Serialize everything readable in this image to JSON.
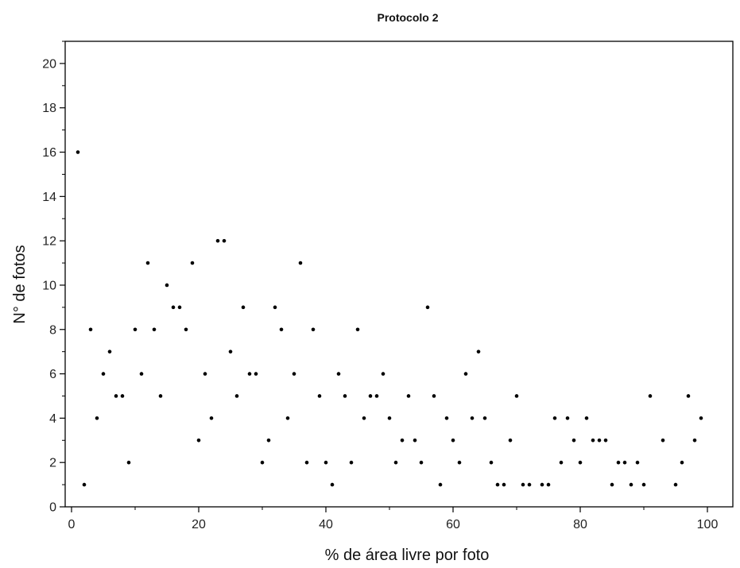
{
  "chart_data": {
    "type": "scatter",
    "title": "Protocolo 2",
    "xlabel": "% de área livre por foto",
    "ylabel": "N° de fotos",
    "xlim": [
      -1,
      104
    ],
    "ylim": [
      0,
      21
    ],
    "xticks": [
      0,
      20,
      40,
      60,
      80,
      100
    ],
    "yticks": [
      0,
      2,
      4,
      6,
      8,
      10,
      12,
      14,
      16,
      18,
      20
    ],
    "grid": false,
    "legend": "none",
    "marker_color": "#000000",
    "points": [
      [
        1,
        16
      ],
      [
        2,
        1
      ],
      [
        3,
        8
      ],
      [
        4,
        4
      ],
      [
        5,
        6
      ],
      [
        6,
        7
      ],
      [
        7,
        5
      ],
      [
        8,
        5
      ],
      [
        9,
        2
      ],
      [
        10,
        8
      ],
      [
        11,
        6
      ],
      [
        12,
        11
      ],
      [
        13,
        8
      ],
      [
        14,
        5
      ],
      [
        15,
        10
      ],
      [
        16,
        9
      ],
      [
        17,
        9
      ],
      [
        18,
        8
      ],
      [
        19,
        11
      ],
      [
        20,
        3
      ],
      [
        21,
        6
      ],
      [
        22,
        4
      ],
      [
        23,
        12
      ],
      [
        24,
        12
      ],
      [
        25,
        7
      ],
      [
        26,
        5
      ],
      [
        27,
        9
      ],
      [
        28,
        6
      ],
      [
        29,
        6
      ],
      [
        30,
        2
      ],
      [
        31,
        3
      ],
      [
        32,
        9
      ],
      [
        33,
        8
      ],
      [
        34,
        4
      ],
      [
        35,
        6
      ],
      [
        36,
        11
      ],
      [
        37,
        2
      ],
      [
        38,
        8
      ],
      [
        39,
        5
      ],
      [
        40,
        2
      ],
      [
        41,
        1
      ],
      [
        42,
        6
      ],
      [
        43,
        5
      ],
      [
        44,
        2
      ],
      [
        45,
        8
      ],
      [
        46,
        4
      ],
      [
        47,
        5
      ],
      [
        48,
        5
      ],
      [
        49,
        6
      ],
      [
        50,
        4
      ],
      [
        51,
        2
      ],
      [
        52,
        3
      ],
      [
        53,
        5
      ],
      [
        54,
        3
      ],
      [
        55,
        2
      ],
      [
        56,
        9
      ],
      [
        57,
        5
      ],
      [
        58,
        1
      ],
      [
        59,
        4
      ],
      [
        60,
        3
      ],
      [
        61,
        2
      ],
      [
        62,
        6
      ],
      [
        63,
        4
      ],
      [
        64,
        7
      ],
      [
        65,
        4
      ],
      [
        66,
        2
      ],
      [
        67,
        1
      ],
      [
        68,
        1
      ],
      [
        69,
        3
      ],
      [
        70,
        5
      ],
      [
        71,
        1
      ],
      [
        72,
        1
      ],
      [
        74,
        1
      ],
      [
        75,
        1
      ],
      [
        76,
        4
      ],
      [
        77,
        2
      ],
      [
        78,
        4
      ],
      [
        79,
        3
      ],
      [
        80,
        2
      ],
      [
        81,
        4
      ],
      [
        82,
        3
      ],
      [
        83,
        3
      ],
      [
        84,
        3
      ],
      [
        85,
        1
      ],
      [
        86,
        2
      ],
      [
        87,
        2
      ],
      [
        88,
        1
      ],
      [
        89,
        2
      ],
      [
        90,
        1
      ],
      [
        91,
        5
      ],
      [
        93,
        3
      ],
      [
        95,
        1
      ],
      [
        96,
        2
      ],
      [
        97,
        5
      ],
      [
        98,
        3
      ],
      [
        99,
        4
      ]
    ]
  }
}
